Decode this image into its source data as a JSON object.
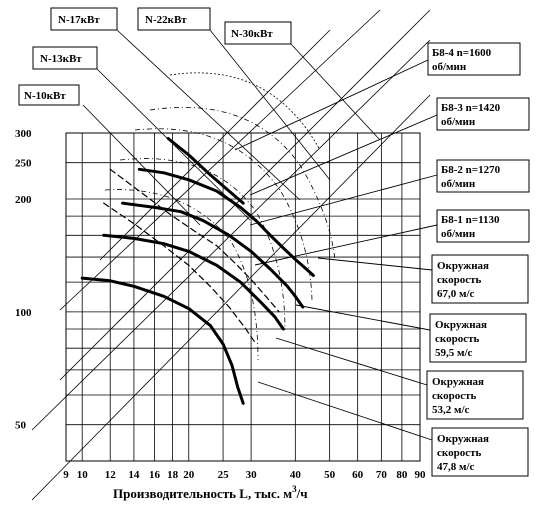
{
  "chart_data": {
    "type": "line",
    "title": "",
    "xlabel": "Производительность  L, тыс. м",
    "xlabel_sup": "3",
    "xlabel_tail": "/ч",
    "x_scale": "log",
    "y_scale": "log",
    "xlim": [
      9,
      90
    ],
    "ylim": [
      40,
      300
    ],
    "x_ticks": [
      "9",
      "10",
      "12",
      "14",
      "16",
      "18",
      "20",
      "25",
      "30",
      "40",
      "50",
      "60",
      "70",
      "80",
      "90"
    ],
    "y_ticks": [
      "300",
      "250",
      "200",
      "100",
      "50"
    ],
    "grid": true,
    "series": [
      {
        "name": "Б8-4  n=1600 об/мин",
        "style": "bold",
        "points": [
          [
            14.5,
            240
          ],
          [
            17,
            235
          ],
          [
            20,
            225
          ],
          [
            24,
            210
          ],
          [
            28,
            190
          ],
          [
            31,
            175
          ],
          [
            34,
            160
          ],
          [
            37,
            148
          ],
          [
            40,
            138
          ],
          [
            43,
            130
          ],
          [
            45,
            125
          ]
        ]
      },
      {
        "name": "Б8-3  n=1420 об/мин",
        "style": "bold",
        "points": [
          [
            13,
            195
          ],
          [
            16,
            190
          ],
          [
            19,
            185
          ],
          [
            22,
            175
          ],
          [
            26,
            160
          ],
          [
            30,
            145
          ],
          [
            34,
            130
          ],
          [
            38,
            117
          ],
          [
            40,
            110
          ],
          [
            42,
            103
          ]
        ]
      },
      {
        "name": "Б8-2  n=1270 об/мин",
        "style": "bold",
        "points": [
          [
            11.5,
            160
          ],
          [
            14,
            157
          ],
          [
            17,
            152
          ],
          [
            20,
            145
          ],
          [
            24,
            133
          ],
          [
            28,
            120
          ],
          [
            32,
            106
          ],
          [
            35,
            97
          ],
          [
            37,
            90
          ]
        ]
      },
      {
        "name": "Б8-1  n=1130 об/мин",
        "style": "bold",
        "points": [
          [
            10,
            123
          ],
          [
            12,
            121
          ],
          [
            14,
            117
          ],
          [
            17,
            110
          ],
          [
            20,
            102
          ],
          [
            23,
            92
          ],
          [
            25,
            82
          ],
          [
            26.5,
            72
          ],
          [
            27.5,
            63
          ],
          [
            28.5,
            57
          ]
        ]
      },
      {
        "name": "",
        "style": "bold-short",
        "points": [
          [
            17.5,
            290
          ],
          [
            20,
            262
          ],
          [
            23,
            232
          ],
          [
            26,
            210
          ],
          [
            28.5,
            195
          ]
        ]
      },
      {
        "name": "",
        "style": "dashed",
        "points": [
          [
            12,
            240
          ],
          [
            15,
            205
          ],
          [
            18,
            180
          ],
          [
            21,
            163
          ],
          [
            24,
            150
          ],
          [
            27,
            135
          ],
          [
            30,
            122
          ],
          [
            33,
            110
          ],
          [
            36,
            100
          ]
        ]
      },
      {
        "name": "",
        "style": "dashed",
        "points": [
          [
            11.5,
            195
          ],
          [
            14,
            172
          ],
          [
            17,
            150
          ],
          [
            20,
            133
          ],
          [
            23,
            117
          ],
          [
            26,
            103
          ],
          [
            29,
            90
          ],
          [
            31,
            82
          ]
        ]
      }
    ],
    "power_lines": [
      "N-10кВт",
      "N-13кВт",
      "N-17кВт",
      "N-22кВт",
      "N-30кВт"
    ],
    "speed_labels": [
      {
        "line1": "Окружная",
        "line2": "скорость",
        "line3": "67,0 м/с"
      },
      {
        "line1": "Окружная",
        "line2": "скорость",
        "line3": "59,5 м/с"
      },
      {
        "line1": "Окружная",
        "line2": "скорость",
        "line3": "53,2 м/с"
      },
      {
        "line1": "Окружная",
        "line2": "скорость",
        "line3": "47,8 м/с"
      }
    ],
    "series_labels": [
      {
        "line1": "Б8-4  n=1600",
        "line2": "об/мин"
      },
      {
        "line1": "Б8-3  n=1420",
        "line2": "об/мин"
      },
      {
        "line1": "Б8-2  n=1270",
        "line2": "об/мин"
      },
      {
        "line1": "Б8-1  n=1130",
        "line2": "об/мин"
      }
    ]
  }
}
